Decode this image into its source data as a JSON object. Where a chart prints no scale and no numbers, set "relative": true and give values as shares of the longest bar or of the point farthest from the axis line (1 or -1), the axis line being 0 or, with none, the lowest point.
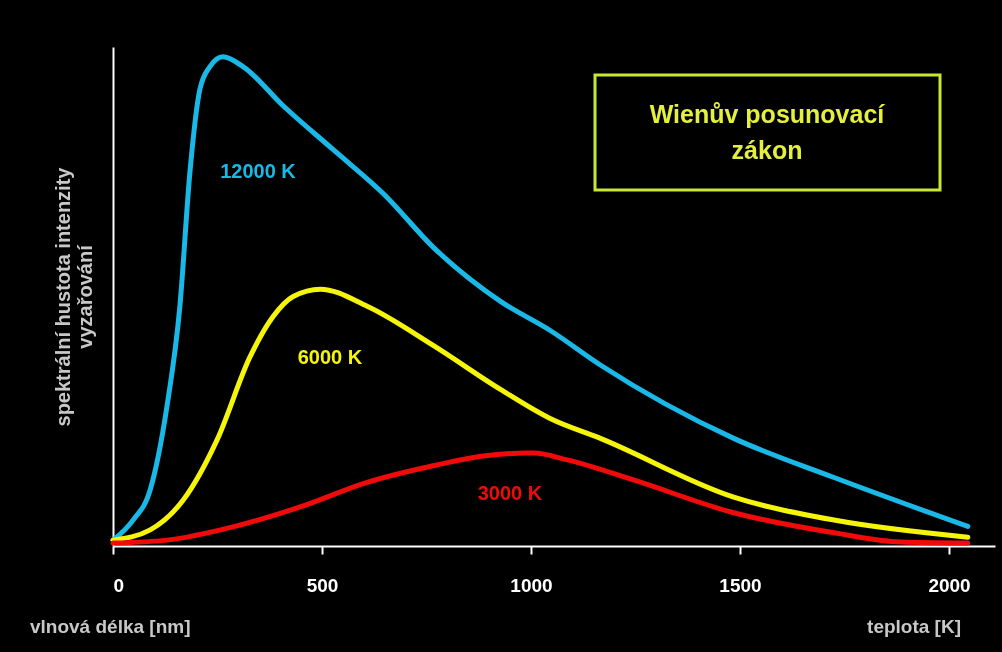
{
  "chart_data": {
    "type": "line",
    "title": "Wienův posunovací zákon",
    "xlabel": "vlnová délka [nm]",
    "ylabel": "spektrální hustota intenzity vyzařování",
    "annotations": [
      "teplota [K]"
    ],
    "relative": true,
    "xlim": [
      0,
      2110
    ],
    "xticks": [
      0,
      500,
      1000,
      1500,
      2000
    ],
    "grid": false,
    "series": [
      {
        "name": "12000 K",
        "color": "#1ab8e6",
        "x": [
          0,
          48,
          89,
          129,
          160,
          184,
          208,
          232,
          263,
          311,
          407,
          527,
          647,
          767,
          927,
          1047,
          1166,
          1485,
          1725,
          2045
        ],
        "values": [
          0.012,
          0.053,
          0.115,
          0.285,
          0.49,
          0.764,
          0.934,
          0.98,
          1.0,
          0.98,
          0.9,
          0.81,
          0.72,
          0.61,
          0.5,
          0.44,
          0.37,
          0.22,
          0.14,
          0.04
        ]
      },
      {
        "name": "6000 K",
        "color": "#f5f50a",
        "x": [
          0,
          89,
          168,
          249,
          328,
          383,
          431,
          496,
          608,
          766,
          927,
          1047,
          1166,
          1485,
          1725,
          2045
        ],
        "values": [
          0.012,
          0.033,
          0.094,
          0.217,
          0.387,
          0.469,
          0.51,
          0.525,
          0.49,
          0.41,
          0.32,
          0.26,
          0.22,
          0.1,
          0.053,
          0.018
        ]
      },
      {
        "name": "3000 K",
        "color": "#f00a0a",
        "x": [
          0,
          129,
          287,
          448,
          608,
          766,
          886,
          992,
          1006,
          1087,
          1245,
          1485,
          1725,
          1885,
          2045
        ],
        "values": [
          0.006,
          0.012,
          0.039,
          0.08,
          0.13,
          0.164,
          0.184,
          0.19,
          0.19,
          0.176,
          0.135,
          0.068,
          0.027,
          0.008,
          0.006
        ]
      }
    ]
  }
}
